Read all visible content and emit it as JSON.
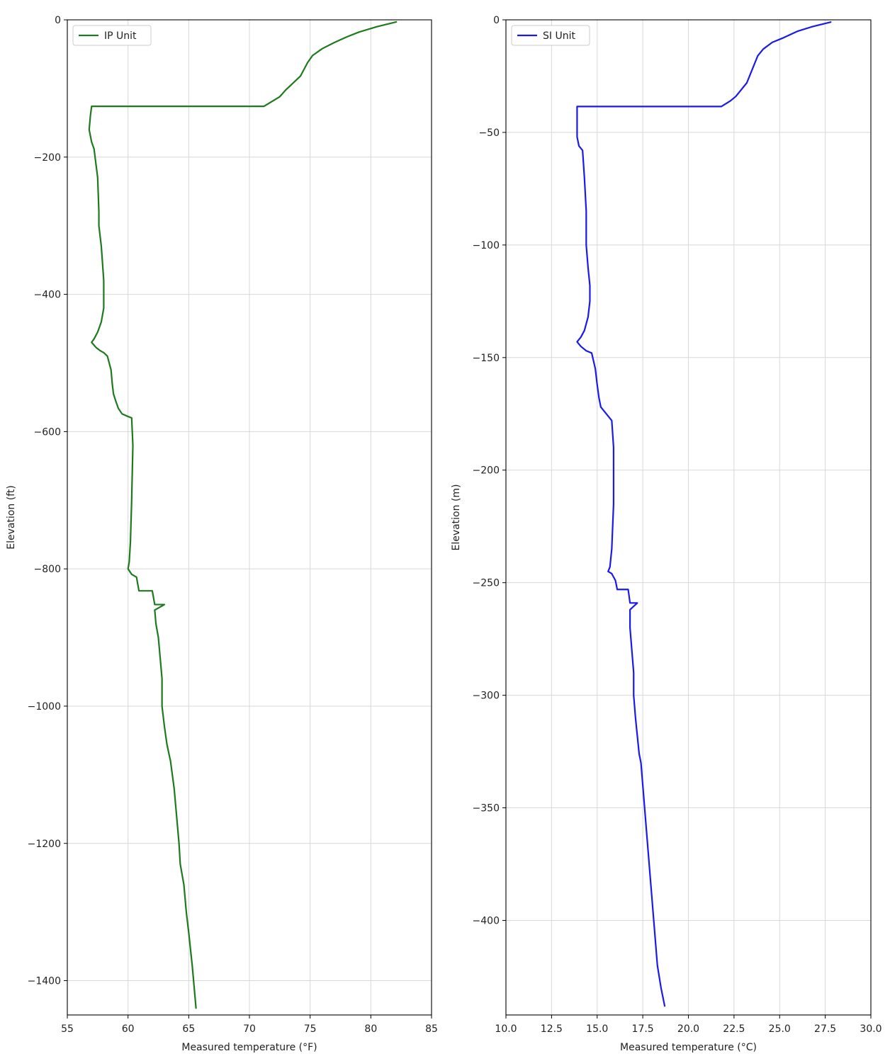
{
  "chart_data": [
    {
      "type": "line",
      "xlabel": "Measured temperature (°F)",
      "ylabel": "Elevation (ft)",
      "xlim": [
        55,
        85
      ],
      "ylim": [
        -1450,
        0
      ],
      "xticks": [
        55,
        60,
        65,
        70,
        75,
        80,
        85
      ],
      "yticks": [
        0,
        -200,
        -400,
        -600,
        -800,
        -1000,
        -1200,
        -1400
      ],
      "grid": true,
      "legend_position": "top-left",
      "series": [
        {
          "name": "IP Unit",
          "color": "#1e7a1e",
          "x": [
            82.1,
            80.5,
            79.0,
            78.0,
            77.0,
            76.0,
            75.2,
            74.8,
            74.5,
            74.2,
            73.6,
            73.0,
            72.5,
            71.2,
            67.0,
            63.0,
            60.0,
            57.0,
            56.9,
            56.8,
            57.0,
            57.2,
            57.5,
            57.6,
            57.6,
            57.8,
            57.9,
            58.0,
            58.0,
            58.0,
            57.8,
            57.5,
            57.2,
            57.0,
            57.4,
            57.7,
            58.0,
            58.3,
            58.6,
            58.7,
            58.8,
            59.0,
            59.2,
            59.5,
            60.0,
            60.3,
            60.4,
            60.3,
            60.2,
            60.1,
            60.0,
            60.3,
            60.7,
            60.9,
            62.0,
            62.2,
            63.0,
            62.2,
            62.3,
            62.5,
            62.6,
            62.8,
            62.8,
            63.0,
            63.2,
            63.4,
            63.5,
            63.8,
            64.0,
            64.2,
            64.3,
            64.6,
            64.8,
            65.0,
            65.3,
            65.6
          ],
          "y": [
            -3,
            -10,
            -18,
            -25,
            -33,
            -42,
            -52,
            -62,
            -72,
            -82,
            -92,
            -102,
            -112,
            -126,
            -126,
            -126,
            -126,
            -126,
            -140,
            -160,
            -178,
            -188,
            -230,
            -280,
            -300,
            -330,
            -355,
            -380,
            -400,
            -420,
            -440,
            -455,
            -465,
            -470,
            -478,
            -482,
            -485,
            -490,
            -510,
            -530,
            -545,
            -556,
            -566,
            -574,
            -578,
            -580,
            -620,
            -700,
            -760,
            -790,
            -800,
            -808,
            -812,
            -832,
            -832,
            -852,
            -852,
            -860,
            -880,
            -900,
            -920,
            -960,
            -1000,
            -1030,
            -1055,
            -1072,
            -1080,
            -1120,
            -1160,
            -1200,
            -1230,
            -1260,
            -1300,
            -1330,
            -1380,
            -1440
          ]
        }
      ]
    },
    {
      "type": "line",
      "xlabel": "Measured temperature (°C)",
      "ylabel": "Elevation (m)",
      "xlim": [
        10.0,
        30.0
      ],
      "ylim": [
        -442,
        0
      ],
      "xticks": [
        10.0,
        12.5,
        15.0,
        17.5,
        20.0,
        22.5,
        25.0,
        27.5,
        30.0
      ],
      "yticks": [
        0,
        -50,
        -100,
        -150,
        -200,
        -250,
        -300,
        -350,
        -400
      ],
      "grid": true,
      "legend_position": "top-left",
      "series": [
        {
          "name": "SI Unit",
          "color": "#1a1aee",
          "x": [
            27.8,
            26.8,
            26.0,
            25.2,
            24.6,
            24.1,
            23.8,
            23.6,
            23.4,
            23.2,
            22.9,
            22.6,
            22.3,
            21.8,
            19.5,
            17.0,
            15.5,
            13.9,
            13.9,
            13.9,
            14.0,
            14.2,
            14.3,
            14.4,
            14.4,
            14.5,
            14.6,
            14.6,
            14.5,
            14.3,
            14.1,
            13.9,
            14.1,
            14.4,
            14.7,
            14.9,
            15.0,
            15.1,
            15.2,
            15.4,
            15.6,
            15.8,
            15.9,
            15.9,
            15.8,
            15.7,
            15.6,
            15.8,
            16.0,
            16.1,
            16.7,
            16.8,
            17.2,
            16.8,
            16.8,
            16.9,
            17.0,
            17.0,
            17.1,
            17.2,
            17.3,
            17.4,
            17.5,
            17.6,
            17.7,
            17.8,
            17.9,
            18.0,
            18.1,
            18.2,
            18.3,
            18.5,
            18.7
          ],
          "y": [
            -1,
            -3,
            -5,
            -8,
            -10,
            -13,
            -16,
            -20,
            -24,
            -28,
            -31,
            -34,
            -36,
            -38.5,
            -38.5,
            -38.5,
            -38.5,
            -38.5,
            -45,
            -52,
            -56,
            -58,
            -70,
            -85,
            -100,
            -110,
            -118,
            -125,
            -132,
            -138,
            -141,
            -143,
            -145,
            -147,
            -148,
            -155,
            -162,
            -168,
            -172,
            -174,
            -176,
            -178,
            -190,
            -215,
            -235,
            -243,
            -245,
            -246,
            -249,
            -253,
            -253,
            -259,
            -259,
            -262,
            -270,
            -280,
            -290,
            -300,
            -310,
            -318,
            -326,
            -330,
            -340,
            -350,
            -360,
            -370,
            -380,
            -390,
            -400,
            -410,
            -420,
            -430,
            -438
          ]
        }
      ]
    }
  ]
}
